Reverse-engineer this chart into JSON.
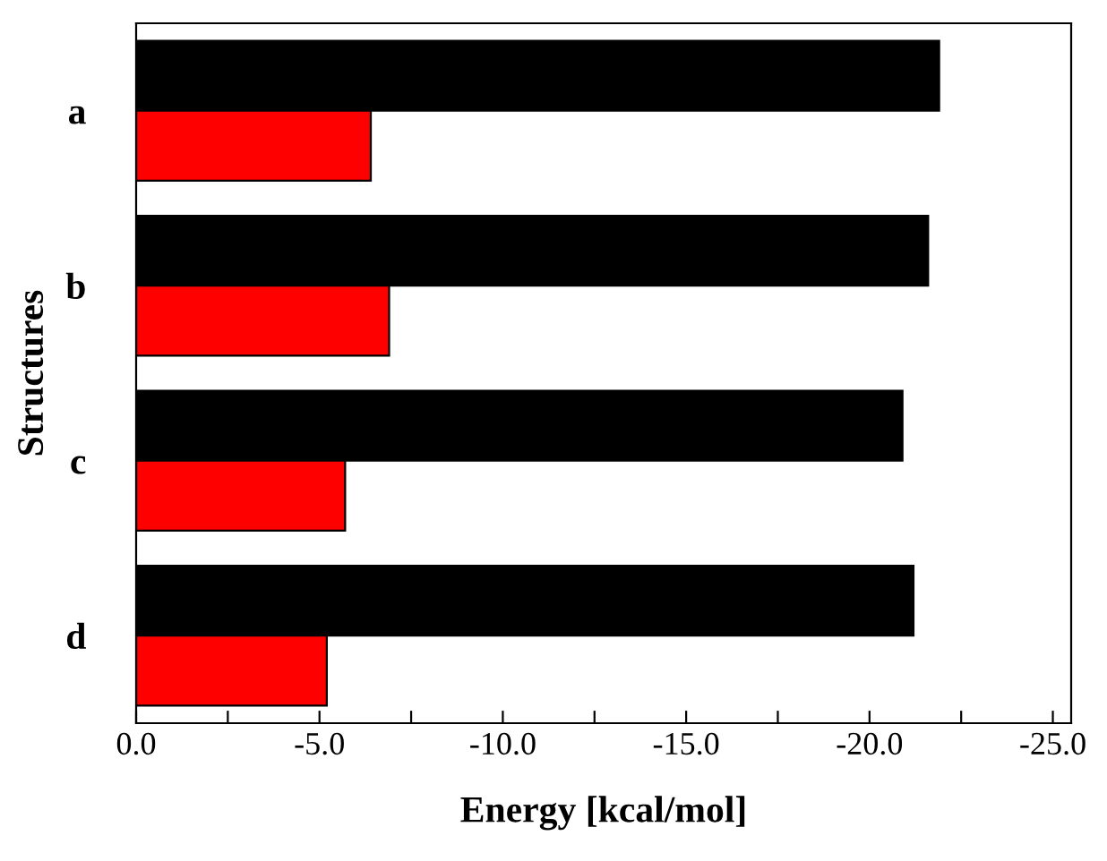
{
  "chart_data": {
    "type": "bar",
    "orientation": "horizontal",
    "xlabel": "Energy [kcal/mol]",
    "ylabel": "Structures",
    "categories": [
      "a",
      "b",
      "c",
      "d"
    ],
    "series": [
      {
        "color": "#000000",
        "values": [
          -21.9,
          -21.6,
          -20.9,
          -21.2
        ]
      },
      {
        "color": "#ff0000",
        "values": [
          -6.4,
          -6.9,
          -5.7,
          -5.2
        ]
      }
    ],
    "xlim": [
      0,
      -25.5
    ],
    "xticks": [
      {
        "value": 0,
        "label": "0.0"
      },
      {
        "value": -2.5,
        "label": null
      },
      {
        "value": -5,
        "label": "-5.0"
      },
      {
        "value": -7.5,
        "label": null
      },
      {
        "value": -10,
        "label": "-10.0"
      },
      {
        "value": -12.5,
        "label": null
      },
      {
        "value": -15,
        "label": "-15.0"
      },
      {
        "value": -17.5,
        "label": null
      },
      {
        "value": -20,
        "label": "-20.0"
      },
      {
        "value": -22.5,
        "label": null
      },
      {
        "value": -25,
        "label": "-25.0"
      }
    ],
    "grid": false,
    "legend": false
  }
}
